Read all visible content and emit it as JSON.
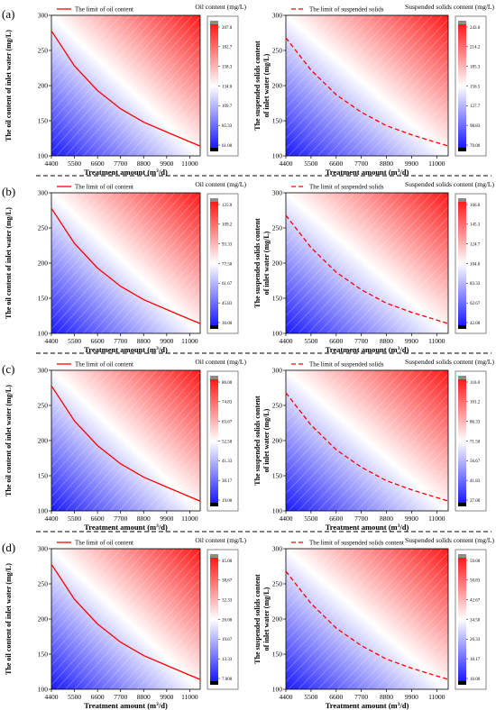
{
  "figure": {
    "panel_labels": [
      "(a)",
      "(b)",
      "(c)",
      "(d)"
    ],
    "x_unit_sup": "3"
  },
  "colors": {
    "low": "#1a1aff",
    "mid": "#ffffff",
    "high": "#ff1a1a",
    "limit_line": "#ff0000",
    "divider": "#000000"
  },
  "chart_data": [
    {
      "type": "contour",
      "row": "(a)",
      "variable": "oil",
      "legend": "The limit of oil content",
      "legend_style": "solid",
      "colorbar_title": "Oil content (mg/L)",
      "colorbar_ticks": [
        "207.0",
        "182.7",
        "158.3",
        "134.0",
        "109.7",
        "85.33",
        "61.00"
      ],
      "xlabel": "Treatment amount (m³/d)",
      "ylabel": [
        "The oil content of inlet water (mg/L)"
      ],
      "x_ticks": [
        4400,
        5500,
        6600,
        7700,
        8800,
        9900,
        11000
      ],
      "xlim": [
        4400,
        11500
      ],
      "y_ticks": [
        100,
        150,
        200,
        250,
        300
      ],
      "ylim": [
        100,
        300
      ],
      "limit_curve": {
        "x": [
          4400,
          5500,
          6600,
          7700,
          8800,
          9900,
          11000,
          11500
        ],
        "y": [
          278,
          228,
          193,
          167,
          148,
          134,
          120,
          114
        ]
      }
    },
    {
      "type": "contour",
      "row": "(a)",
      "variable": "ss",
      "legend": "The limit of suspended solids",
      "legend_style": "dashed",
      "colorbar_title": "Suspended solids content (mg/L)",
      "colorbar_ticks": [
        "243.0",
        "214.2",
        "185.3",
        "156.5",
        "127.7",
        "98.83",
        "70.00"
      ],
      "xlabel": "Treatment amount (m³/d)",
      "ylabel": [
        "The suspended solids content",
        "of inlet water (mg/L)"
      ],
      "x_ticks": [
        4400,
        5500,
        6600,
        7700,
        8800,
        9900,
        11000
      ],
      "xlim": [
        4400,
        11500
      ],
      "y_ticks": [
        100,
        150,
        200,
        250,
        300
      ],
      "ylim": [
        100,
        300
      ],
      "limit_curve": {
        "x": [
          4400,
          5500,
          6600,
          7700,
          8800,
          9900,
          11000,
          11500
        ],
        "y": [
          268,
          222,
          187,
          162,
          143,
          130,
          119,
          114
        ]
      }
    },
    {
      "type": "contour",
      "row": "(b)",
      "variable": "oil",
      "legend": "The limit of oil content",
      "legend_style": "solid",
      "colorbar_title": "Oil content (mg/L)",
      "colorbar_ticks": [
        "125.0",
        "109.2",
        "93.33",
        "77.50",
        "61.67",
        "45.83",
        "30.00"
      ],
      "xlabel": "Treatment amount (m³/d)",
      "ylabel": [
        "The oil content of inlet water (mg/L)"
      ],
      "x_ticks": [
        4400,
        5500,
        6600,
        7700,
        8800,
        9900,
        11000
      ],
      "xlim": [
        4400,
        11500
      ],
      "y_ticks": [
        100,
        150,
        200,
        250,
        300
      ],
      "ylim": [
        100,
        300
      ],
      "limit_curve": {
        "x": [
          4400,
          5500,
          6600,
          7700,
          8800,
          9900,
          11000,
          11500
        ],
        "y": [
          278,
          228,
          193,
          167,
          148,
          134,
          120,
          114
        ]
      }
    },
    {
      "type": "contour",
      "row": "(b)",
      "variable": "ss",
      "legend": "The limit of suspended solids",
      "legend_style": "dashed",
      "colorbar_title": "Suspended solids content (mg/L)",
      "colorbar_ticks": [
        "166.0",
        "145.3",
        "124.7",
        "104.0",
        "83.33",
        "62.67",
        "42.00"
      ],
      "xlabel": "Treatment amount (m³/d)",
      "ylabel": [
        "The suspended solids content",
        "of inlet water (mg/L)"
      ],
      "x_ticks": [
        4400,
        5500,
        6600,
        7700,
        8800,
        9900,
        11000
      ],
      "xlim": [
        4400,
        11500
      ],
      "y_ticks": [
        100,
        150,
        200,
        250,
        300
      ],
      "ylim": [
        100,
        300
      ],
      "limit_curve": {
        "x": [
          4400,
          5500,
          6600,
          7700,
          8800,
          9900,
          11000,
          11500
        ],
        "y": [
          268,
          222,
          187,
          162,
          143,
          130,
          119,
          114
        ]
      }
    },
    {
      "type": "contour",
      "row": "(c)",
      "variable": "oil",
      "legend": "The limit of oil content",
      "legend_style": "solid",
      "colorbar_title": "Oil content (mg/L)",
      "colorbar_ticks": [
        "86.00",
        "74.83",
        "63.67",
        "52.50",
        "41.33",
        "30.17",
        "19.00"
      ],
      "xlabel": "Treatment amount (m³/d)",
      "ylabel": [
        "The oil content of inlet water (mg/L)"
      ],
      "x_ticks": [
        4400,
        5500,
        6600,
        7700,
        8800,
        9900,
        11000
      ],
      "xlim": [
        4400,
        11500
      ],
      "y_ticks": [
        100,
        150,
        200,
        250,
        300
      ],
      "ylim": [
        100,
        300
      ],
      "limit_curve": {
        "x": [
          4400,
          5500,
          6600,
          7700,
          8800,
          9900,
          11000,
          11500
        ],
        "y": [
          278,
          228,
          193,
          167,
          148,
          134,
          120,
          114
        ]
      }
    },
    {
      "type": "contour",
      "row": "(c)",
      "variable": "ss",
      "legend": "The limit of suspended solids",
      "legend_style": "dashed",
      "colorbar_title": "Suspended solids content (mg/L)",
      "colorbar_ticks": [
        "116.0",
        "101.2",
        "86.33",
        "71.50",
        "56.67",
        "41.83",
        "27.00"
      ],
      "xlabel": "Treatment amount (m³/d)",
      "ylabel": [
        "The suspended solids content",
        "of inlet water (mg/L)"
      ],
      "x_ticks": [
        4400,
        5500,
        6600,
        7700,
        8800,
        9900,
        11000
      ],
      "xlim": [
        4400,
        11500
      ],
      "y_ticks": [
        100,
        150,
        200,
        250,
        300
      ],
      "ylim": [
        100,
        300
      ],
      "limit_curve": {
        "x": [
          4400,
          5500,
          6600,
          7700,
          8800,
          9900,
          11000,
          11500
        ],
        "y": [
          268,
          222,
          187,
          162,
          143,
          130,
          119,
          114
        ]
      }
    },
    {
      "type": "contour",
      "row": "(d)",
      "variable": "oil",
      "legend": "The limit of oil content",
      "legend_style": "solid",
      "colorbar_title": "Oil content (mg/L)",
      "colorbar_ticks": [
        "45.00",
        "38.67",
        "32.33",
        "26.00",
        "19.67",
        "13.33",
        "7.000"
      ],
      "xlabel": "Treatment amount (m³/d)",
      "ylabel": [
        "The oil content of inlet water (mg/L)"
      ],
      "x_ticks": [
        4400,
        5500,
        6600,
        7700,
        8800,
        9900,
        11000
      ],
      "xlim": [
        4400,
        11500
      ],
      "y_ticks": [
        100,
        150,
        200,
        250,
        300
      ],
      "ylim": [
        100,
        300
      ],
      "limit_curve": {
        "x": [
          4400,
          5500,
          6600,
          7700,
          8800,
          9900,
          11000,
          11500
        ],
        "y": [
          278,
          228,
          193,
          167,
          148,
          134,
          120,
          114
        ]
      }
    },
    {
      "type": "contour",
      "row": "(d)",
      "variable": "ss",
      "legend": "The limit of suspended solids content",
      "legend_style": "dashed",
      "colorbar_title": "Suspended solids content (mg/L)",
      "colorbar_ticks": [
        "59.00",
        "50.83",
        "42.67",
        "34.50",
        "26.33",
        "18.17",
        "10.00"
      ],
      "xlabel": "Treatment amount (m³/d)",
      "ylabel": [
        "The suspended solids content",
        "of inlet water (mg/L)"
      ],
      "x_ticks": [
        4400,
        5500,
        6600,
        7700,
        8800,
        9900,
        11000
      ],
      "xlim": [
        4400,
        11500
      ],
      "y_ticks": [
        100,
        150,
        200,
        250,
        300
      ],
      "ylim": [
        100,
        300
      ],
      "limit_curve": {
        "x": [
          4400,
          5500,
          6600,
          7700,
          8800,
          9900,
          11000,
          11500
        ],
        "y": [
          268,
          222,
          187,
          162,
          143,
          130,
          119,
          114
        ]
      }
    }
  ]
}
